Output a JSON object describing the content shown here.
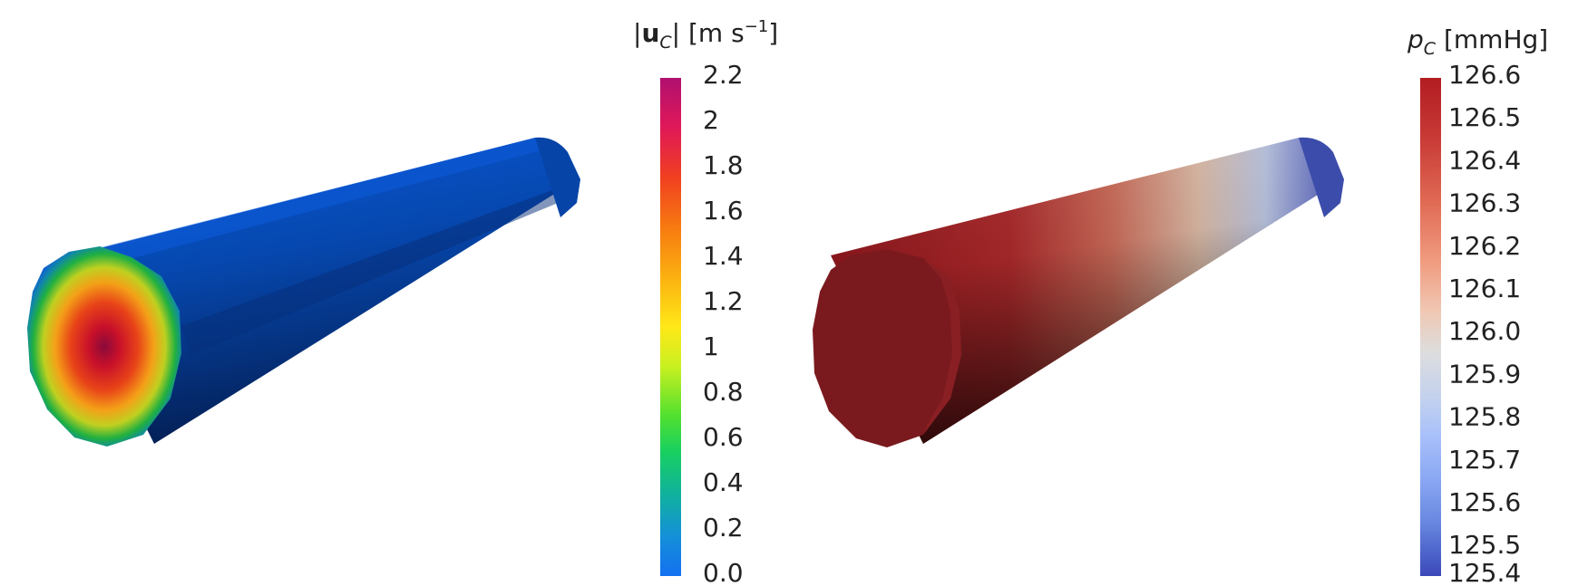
{
  "velocity_panel": {
    "title_symbol": "u",
    "title_sub": "C",
    "title_unit_main": " [m s",
    "title_unit_exp": "−1",
    "title_unit_end": "]",
    "colorbar_labels": [
      "2.2",
      "2",
      "1.8",
      "1.6",
      "1.4",
      "1.2",
      "1",
      "0.8",
      "0.6",
      "0.4",
      "0.2",
      "0.0"
    ],
    "colormap": [
      "#b01070",
      "#e01858",
      "#f04020",
      "#f77a10",
      "#fbb010",
      "#ffe818",
      "#e8f818",
      "#70e020",
      "#18d060",
      "#10b0a0",
      "#1490d8",
      "#1470f0"
    ],
    "cylinder_side_color": "#0850c8",
    "cylinder_side_shadow": "#06306e"
  },
  "pressure_panel": {
    "title_symbol": "p",
    "title_sub": "C",
    "title_unit": " [mmHg]",
    "colorbar_labels": [
      "126.6",
      "126.5",
      "126.4",
      "126.3",
      "126.2",
      "126.1",
      "126.0",
      "125.9",
      "125.8",
      "125.7",
      "125.6",
      "125.5",
      "125.4"
    ],
    "colormap": [
      "#b21c22",
      "#c83a36",
      "#e06a54",
      "#f09c80",
      "#f0c8b4",
      "#dddddd",
      "#c4d2ee",
      "#a8c0fa",
      "#88a6f2",
      "#6a88e0",
      "#4e66cc",
      "#3c48b8"
    ],
    "cap_color": "#7a1a1e"
  }
}
